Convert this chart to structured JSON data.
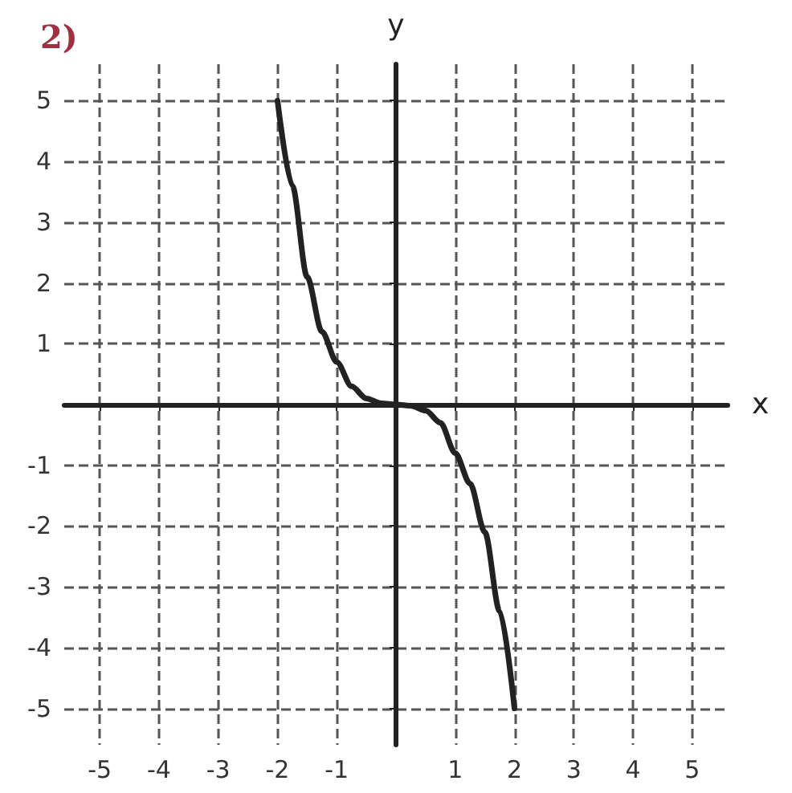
{
  "chart_data": {
    "type": "line",
    "title": "2)",
    "xlabel": "x",
    "ylabel": "y",
    "x": [
      -2,
      -1.75,
      -1.5,
      -1.25,
      -1,
      -0.75,
      -0.5,
      -0.25,
      0,
      0.25,
      0.5,
      0.75,
      1,
      1.25,
      1.5,
      1.75,
      2
    ],
    "series": [
      {
        "color": "#222222",
        "values": [
          5,
          3.6,
          2.1,
          1.2,
          0.7,
          0.3,
          0.1,
          0.02,
          0,
          -0.02,
          -0.1,
          -0.3,
          -0.8,
          -1.3,
          -2.1,
          -3.4,
          -5
        ]
      }
    ],
    "xlim": [
      -5.6,
      5.6
    ],
    "ylim": [
      -5.6,
      5.6
    ],
    "xticks": [
      -5,
      -4,
      -3,
      -2,
      -1,
      1,
      2,
      3,
      4,
      5
    ],
    "yticks": [
      -5,
      -4,
      -3,
      -2,
      -1,
      1,
      2,
      3,
      4,
      5
    ],
    "grid": true,
    "marker": "none",
    "line_style": "solid"
  }
}
